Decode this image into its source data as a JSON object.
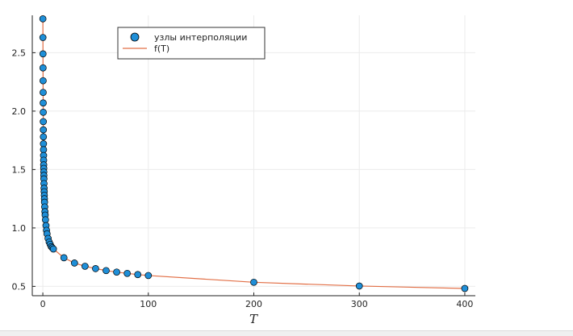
{
  "chart_data": {
    "type": "scatter",
    "xlabel": "T",
    "ylabel": "",
    "xlim": [
      -10,
      410
    ],
    "ylim": [
      0.42,
      2.82
    ],
    "xticks": [
      0,
      100,
      200,
      300,
      400
    ],
    "yticks": [
      0.5,
      1.0,
      1.5,
      2.0,
      2.5
    ],
    "xtick_labels": [
      "0",
      "100",
      "200",
      "300",
      "400"
    ],
    "ytick_labels": [
      "0.5",
      "1.0",
      "1.5",
      "2.0",
      "2.5"
    ],
    "grid": true,
    "legend_position": "top-left",
    "series": [
      {
        "name": "узлы интерполяции",
        "kind": "scatter",
        "color": "#1f8fd8",
        "x": [
          0.05,
          0.1,
          0.15,
          0.2,
          0.25,
          0.3,
          0.35,
          0.4,
          0.45,
          0.5,
          0.55,
          0.6,
          0.65,
          0.7,
          0.75,
          0.8,
          0.85,
          0.9,
          0.95,
          1.0,
          1.1,
          1.2,
          1.3,
          1.4,
          1.5,
          1.6,
          1.8,
          2.0,
          2.2,
          2.5,
          3,
          3.5,
          4,
          5,
          6,
          7,
          8,
          9,
          10,
          20,
          30,
          40,
          50,
          60,
          70,
          80,
          90,
          100,
          200,
          300,
          400
        ],
        "y": [
          2.79,
          2.63,
          2.49,
          2.37,
          2.26,
          2.16,
          2.07,
          1.99,
          1.91,
          1.84,
          1.78,
          1.72,
          1.67,
          1.62,
          1.58,
          1.54,
          1.51,
          1.48,
          1.45,
          1.42,
          1.38,
          1.34,
          1.31,
          1.28,
          1.25,
          1.22,
          1.18,
          1.14,
          1.11,
          1.07,
          1.02,
          0.98,
          0.95,
          0.91,
          0.88,
          0.86,
          0.84,
          0.83,
          0.82,
          0.745,
          0.7,
          0.672,
          0.652,
          0.635,
          0.622,
          0.611,
          0.601,
          0.593,
          0.535,
          0.503,
          0.482
        ]
      },
      {
        "name": "f(T)",
        "kind": "line",
        "color": "#e26f46"
      }
    ]
  }
}
